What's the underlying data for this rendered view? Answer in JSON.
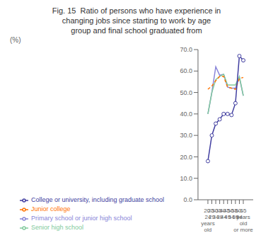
{
  "chart_data": {
    "type": "line",
    "title": "Fig. 15  Ratio of persons who have experience in\nchanging jobs since starting to work by age\ngroup and final school graduated from",
    "ylabel": "(%)",
    "categories": [
      "20-\n24\nyears\nold",
      "25-\n29",
      "30-\n34",
      "35-\n39",
      "40-\n44",
      "45-\n49",
      "50-\n54",
      "55-\n59",
      "60-\n64",
      "65\nyears\nold\nor more"
    ],
    "series": [
      {
        "name": "Primary school or junior high school",
        "color": "#8884d8",
        "line_style": "solid",
        "marker": "none",
        "values": [
          40.0,
          50.0,
          62.0,
          58.0,
          58.5,
          52.5,
          52.0,
          52.0,
          57.0,
          48.5
        ]
      },
      {
        "name": "Senior high school",
        "color": "#82ca9d",
        "line_style": "solid",
        "marker": "none",
        "values": [
          40.0,
          50.0,
          56.0,
          57.5,
          58.5,
          53.5,
          53.5,
          53.5,
          57.5,
          48.5
        ]
      },
      {
        "name": "Junior college",
        "color": "#ff7300",
        "line_style": "dashed",
        "marker": "none",
        "values": [
          51.5,
          53.0,
          55.5,
          57.5,
          57.5,
          52.5,
          52.0,
          51.5,
          56.5,
          57.0
        ]
      },
      {
        "name": "College or university, including graduate school",
        "color": "#413ea0",
        "line_style": "solid",
        "marker": "o",
        "values": [
          18.0,
          30.0,
          35.5,
          37.5,
          40.0,
          40.0,
          39.5,
          45.0,
          67.0,
          65.0
        ]
      }
    ],
    "ylim": [
      0,
      70
    ],
    "yticks": [
      {
        "value": 0,
        "label": "0.0"
      },
      {
        "value": 10,
        "label": "10.0"
      },
      {
        "value": 20,
        "label": "20.0"
      },
      {
        "value": 30,
        "label": "30.0"
      },
      {
        "value": 40,
        "label": "40.0"
      },
      {
        "value": 50,
        "label": "50.0"
      },
      {
        "value": 60,
        "label": "60.0"
      },
      {
        "value": 70,
        "label": "70.0"
      }
    ],
    "grid": false,
    "legend": "lower left"
  }
}
